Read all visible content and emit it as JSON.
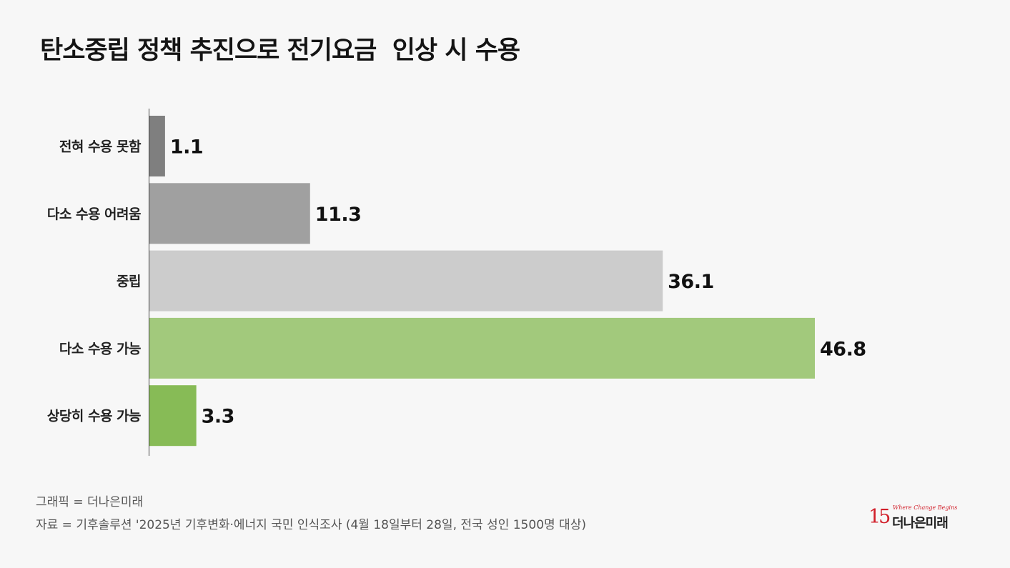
{
  "title": "탄소중립 정책 추진으로 전기요금  인상 시 수용",
  "chart_data": {
    "type": "bar",
    "orientation": "horizontal",
    "categories": [
      "전혀 수용 못함",
      "다소 수용 어려움",
      "중립",
      "다소 수용 가능",
      "상당히 수용 가능"
    ],
    "values": [
      1.1,
      11.3,
      36.1,
      46.8,
      3.3
    ],
    "value_labels": [
      "1.1",
      "11.3",
      "36.1",
      "46.8",
      "3.3"
    ],
    "colors": [
      "#7f7f7f",
      "#a0a0a0",
      "#cccccc",
      "#a2c97c",
      "#87bb56"
    ],
    "xlim": [
      0,
      50
    ],
    "grid": false,
    "legend": "none"
  },
  "credits": {
    "graphic": "그래픽 = 더나은미래",
    "source": "자료 = 기후솔루션 '2025년 기후변화·에너지 국민 인식조사 (4월 18일부터 28일, 전국 성인 1500명 대상)"
  },
  "logo": {
    "number": "15",
    "tagline": "Where Change Begins",
    "name": "더나은미래"
  }
}
